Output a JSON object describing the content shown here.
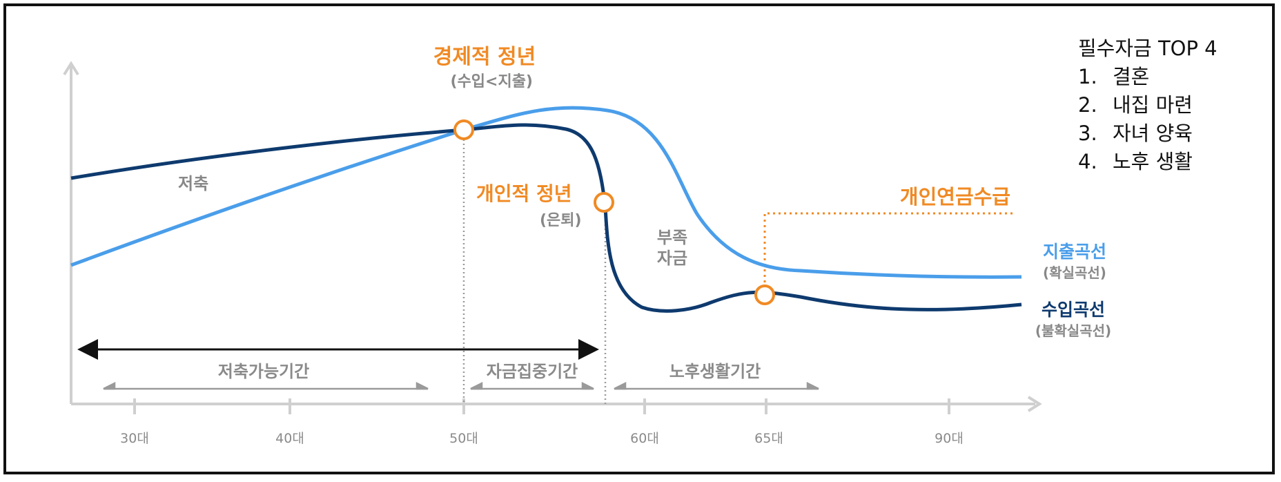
{
  "chart_data": {
    "type": "line",
    "x_ticks": [
      "30대",
      "40대",
      "50대",
      "60대",
      "65대",
      "90대"
    ],
    "series": [
      {
        "name": "지출곡선",
        "subtitle": "(확실곡선)",
        "color": "#4a9eea"
      },
      {
        "name": "수입곡선",
        "subtitle": "(불확실곡선)",
        "color": "#0e3a6e"
      }
    ],
    "curve_labels": {
      "savings": "저축",
      "shortfall": [
        "부족",
        "자금"
      ]
    },
    "milestones": [
      {
        "title": "경제적 정년",
        "note": "(수입<지출)"
      },
      {
        "title": "개인적 정년",
        "note": "(은퇴)"
      },
      {
        "title": "개인연금수급",
        "note": ""
      }
    ],
    "periods": [
      "저축가능기간",
      "자금집중기간",
      "노후생활기간"
    ],
    "accent_color": "#f08a24",
    "grid": false
  },
  "top4": {
    "title": "필수자금 TOP 4",
    "items": [
      {
        "num": "1.",
        "label": "결혼"
      },
      {
        "num": "2.",
        "label": "내집 마련"
      },
      {
        "num": "3.",
        "label": "자녀 양육"
      },
      {
        "num": "4.",
        "label": "노후 생활"
      }
    ]
  }
}
